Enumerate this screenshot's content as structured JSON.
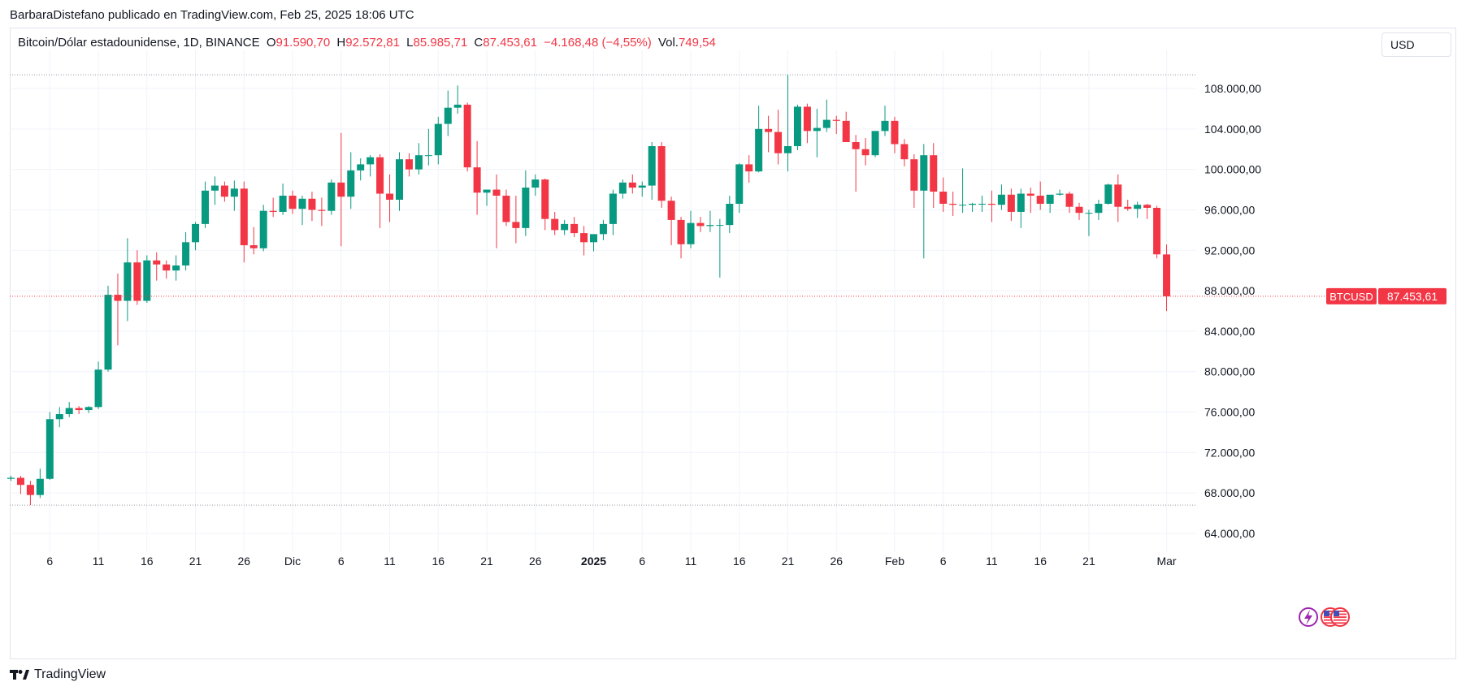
{
  "header": {
    "publisher": "BarbaraDistefano publicado en TradingView.com, Feb 25, 2025 18:06 UTC"
  },
  "legend": {
    "symbol": "Bitcoin/Dólar estadounidense, 1D, BINANCE",
    "open_label": "O",
    "open": "91.590,70",
    "high_label": "H",
    "high": "92.572,81",
    "low_label": "L",
    "low": "85.985,71",
    "close_label": "C",
    "close": "87.453,61",
    "change": "−4.168,48 (−4,55%)",
    "vol_label": "Vol.",
    "vol": "749,54"
  },
  "currency": "USD",
  "price_tag": {
    "symbol": "BTCUSD",
    "value": "87.453,61"
  },
  "brand": "TradingView",
  "colors": {
    "up": "#089981",
    "down": "#f23645",
    "grid": "#f0f3fa",
    "text": "#131722"
  },
  "icons": [
    "lightning-event-icon",
    "us-flag-event-icon",
    "us-flag-event-icon"
  ],
  "chart_data": {
    "type": "candlestick",
    "ylim": [
      62000,
      110000
    ],
    "y_ticks": [
      "64.000,00",
      "68.000,00",
      "72.000,00",
      "76.000,00",
      "80.000,00",
      "84.000,00",
      "88.000,00",
      "92.000,00",
      "96.000,00",
      "100.000,00",
      "104.000,00",
      "108.000,00"
    ],
    "y_tick_values": [
      64000,
      68000,
      72000,
      76000,
      80000,
      84000,
      88000,
      92000,
      96000,
      100000,
      104000,
      108000
    ],
    "x_ticks": [
      {
        "label": "6",
        "idx": 4
      },
      {
        "label": "11",
        "idx": 9
      },
      {
        "label": "16",
        "idx": 14
      },
      {
        "label": "21",
        "idx": 19
      },
      {
        "label": "26",
        "idx": 24
      },
      {
        "label": "Dic",
        "idx": 29
      },
      {
        "label": "6",
        "idx": 34
      },
      {
        "label": "11",
        "idx": 39
      },
      {
        "label": "16",
        "idx": 44
      },
      {
        "label": "21",
        "idx": 49
      },
      {
        "label": "26",
        "idx": 54
      },
      {
        "label": "2025",
        "idx": 60,
        "bold": true
      },
      {
        "label": "6",
        "idx": 65
      },
      {
        "label": "11",
        "idx": 70
      },
      {
        "label": "16",
        "idx": 75
      },
      {
        "label": "21",
        "idx": 80
      },
      {
        "label": "26",
        "idx": 85
      },
      {
        "label": "Feb",
        "idx": 91
      },
      {
        "label": "6",
        "idx": 96
      },
      {
        "label": "11",
        "idx": 101
      },
      {
        "label": "16",
        "idx": 106
      },
      {
        "label": "21",
        "idx": 111
      },
      {
        "label": "Mar",
        "idx": 119
      }
    ],
    "range_high": 109350,
    "range_low": 66800,
    "last_close": 87453.61,
    "candles": [
      [
        69400,
        69700,
        69200,
        69500
      ],
      [
        69500,
        69700,
        67900,
        68800
      ],
      [
        68800,
        69200,
        66800,
        67800
      ],
      [
        67800,
        70400,
        67500,
        69400
      ],
      [
        69400,
        76000,
        69300,
        75300
      ],
      [
        75300,
        76500,
        74500,
        75800
      ],
      [
        75800,
        77000,
        75500,
        76400
      ],
      [
        76400,
        76600,
        75800,
        76200
      ],
      [
        76200,
        76600,
        75900,
        76500
      ],
      [
        76500,
        81000,
        76300,
        80200
      ],
      [
        80200,
        88500,
        80000,
        87600
      ],
      [
        87600,
        89700,
        82600,
        87000
      ],
      [
        87000,
        93200,
        85000,
        90800
      ],
      [
        90800,
        92000,
        86600,
        87000
      ],
      [
        87000,
        91500,
        86800,
        91000
      ],
      [
        91000,
        91800,
        89000,
        90600
      ],
      [
        90600,
        91000,
        89200,
        90000
      ],
      [
        90000,
        91500,
        89000,
        90500
      ],
      [
        90500,
        93800,
        90000,
        92800
      ],
      [
        92800,
        94800,
        92000,
        94600
      ],
      [
        94600,
        98800,
        94200,
        97900
      ],
      [
        97900,
        99300,
        96500,
        98400
      ],
      [
        98400,
        98800,
        96800,
        97300
      ],
      [
        97300,
        98900,
        95900,
        98100
      ],
      [
        98100,
        98800,
        90800,
        92500
      ],
      [
        92500,
        94300,
        91600,
        92200
      ],
      [
        92200,
        96500,
        91900,
        95900
      ],
      [
        95900,
        97200,
        95300,
        95800
      ],
      [
        95800,
        98600,
        95500,
        97400
      ],
      [
        97400,
        97900,
        95600,
        96100
      ],
      [
        96100,
        97400,
        94500,
        97100
      ],
      [
        97100,
        97800,
        94900,
        96000
      ],
      [
        96000,
        97200,
        94400,
        95900
      ],
      [
        95900,
        99000,
        95500,
        98700
      ],
      [
        98700,
        103600,
        92400,
        97300
      ],
      [
        97300,
        101700,
        96100,
        99900
      ],
      [
        99900,
        101100,
        98900,
        100500
      ],
      [
        100500,
        101400,
        99300,
        101200
      ],
      [
        101200,
        101500,
        94200,
        97600
      ],
      [
        97600,
        99500,
        94800,
        97000
      ],
      [
        97000,
        101700,
        95900,
        101000
      ],
      [
        101000,
        101600,
        99300,
        100000
      ],
      [
        100000,
        102600,
        99500,
        101400
      ],
      [
        101400,
        104000,
        100400,
        101400
      ],
      [
        101400,
        105200,
        100500,
        104500
      ],
      [
        104500,
        107800,
        103300,
        106100
      ],
      [
        106100,
        108300,
        105500,
        106400
      ],
      [
        106400,
        106600,
        99800,
        100200
      ],
      [
        100200,
        102800,
        95500,
        97700
      ],
      [
        97700,
        98000,
        96400,
        98000
      ],
      [
        98000,
        99500,
        92200,
        97400
      ],
      [
        97400,
        98000,
        94400,
        94800
      ],
      [
        94800,
        97400,
        92700,
        94200
      ],
      [
        94200,
        99900,
        93400,
        98200
      ],
      [
        98200,
        99500,
        97400,
        99000
      ],
      [
        99000,
        99100,
        94000,
        95100
      ],
      [
        95100,
        95800,
        93500,
        94000
      ],
      [
        94000,
        95000,
        93500,
        94600
      ],
      [
        94600,
        95300,
        93300,
        93700
      ],
      [
        93700,
        94400,
        91500,
        92800
      ],
      [
        92800,
        93500,
        91900,
        93600
      ],
      [
        93600,
        95000,
        93000,
        94600
      ],
      [
        94600,
        98000,
        93500,
        97600
      ],
      [
        97600,
        99000,
        97100,
        98700
      ],
      [
        98700,
        99500,
        97600,
        98200
      ],
      [
        98200,
        98800,
        97300,
        98400
      ],
      [
        98400,
        102700,
        97000,
        102300
      ],
      [
        102300,
        102700,
        96200,
        96900
      ],
      [
        96900,
        97300,
        92500,
        95000
      ],
      [
        95000,
        95300,
        91200,
        92600
      ],
      [
        92600,
        95900,
        92200,
        94700
      ],
      [
        94700,
        95300,
        93800,
        94400
      ],
      [
        94400,
        95900,
        93800,
        94500
      ],
      [
        94500,
        95100,
        89300,
        94500
      ],
      [
        94500,
        97400,
        93700,
        96600
      ],
      [
        96600,
        100600,
        95700,
        100500
      ],
      [
        100500,
        101400,
        98700,
        99800
      ],
      [
        99800,
        106300,
        99700,
        104000
      ],
      [
        104000,
        105300,
        101700,
        103700
      ],
      [
        103700,
        105900,
        100500,
        101600
      ],
      [
        101600,
        109350,
        99800,
        102300
      ],
      [
        102300,
        106400,
        101900,
        106200
      ],
      [
        106200,
        106500,
        102600,
        103800
      ],
      [
        103800,
        106000,
        101200,
        104100
      ],
      [
        104100,
        106900,
        103700,
        104900
      ],
      [
        104900,
        105300,
        103500,
        104800
      ],
      [
        104800,
        105700,
        102800,
        102700
      ],
      [
        102700,
        103400,
        97800,
        102000
      ],
      [
        102000,
        103100,
        100400,
        101400
      ],
      [
        101400,
        103600,
        101200,
        103800
      ],
      [
        103800,
        106300,
        103300,
        104800
      ],
      [
        104800,
        105200,
        101600,
        102500
      ],
      [
        102500,
        103000,
        100300,
        101000
      ],
      [
        101000,
        101500,
        96200,
        97900
      ],
      [
        97900,
        102500,
        91200,
        101400
      ],
      [
        101400,
        102600,
        96200,
        97800
      ],
      [
        97800,
        99200,
        95800,
        96600
      ],
      [
        96600,
        97800,
        95400,
        96500
      ],
      [
        96500,
        100100,
        95700,
        96500
      ],
      [
        96500,
        96700,
        95800,
        96600
      ],
      [
        96600,
        97400,
        95800,
        96600
      ],
      [
        96600,
        97900,
        94800,
        96500
      ],
      [
        96500,
        98500,
        96000,
        97500
      ],
      [
        97500,
        98100,
        94900,
        95800
      ],
      [
        95800,
        98100,
        94200,
        97600
      ],
      [
        97600,
        98200,
        95700,
        97400
      ],
      [
        97400,
        98800,
        96000,
        96600
      ],
      [
        96600,
        97400,
        95700,
        97500
      ],
      [
        97500,
        98000,
        97400,
        97600
      ],
      [
        97600,
        97800,
        95700,
        96300
      ],
      [
        96300,
        96700,
        95000,
        95700
      ],
      [
        95700,
        96000,
        93400,
        95700
      ],
      [
        95700,
        97000,
        95000,
        96600
      ],
      [
        96600,
        98600,
        96500,
        98500
      ],
      [
        98500,
        99500,
        94800,
        96300
      ],
      [
        96300,
        97000,
        95900,
        96100
      ],
      [
        96100,
        96800,
        95200,
        96500
      ],
      [
        96500,
        96600,
        95100,
        96200
      ],
      [
        96200,
        96400,
        91200,
        91600
      ],
      [
        91590.7,
        92572.81,
        85985.71,
        87453.61
      ]
    ]
  }
}
